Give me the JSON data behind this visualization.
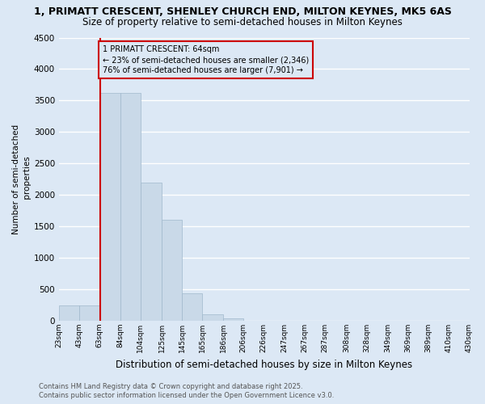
{
  "title": "1, PRIMATT CRESCENT, SHENLEY CHURCH END, MILTON KEYNES, MK5 6AS",
  "subtitle": "Size of property relative to semi-detached houses in Milton Keynes",
  "xlabel": "Distribution of semi-detached houses by size in Milton Keynes",
  "ylabel": "Number of semi-detached\n properties",
  "footer_line1": "Contains HM Land Registry data © Crown copyright and database right 2025.",
  "footer_line2": "Contains public sector information licensed under the Open Government Licence v3.0.",
  "annotation_title": "1 PRIMATT CRESCENT: 64sqm",
  "annotation_line1": "← 23% of semi-detached houses are smaller (2,346)",
  "annotation_line2": "76% of semi-detached houses are larger (7,901) →",
  "property_size_sqm": 64,
  "n_bins": 21,
  "bar_heights": [
    250,
    250,
    3620,
    3620,
    2200,
    1600,
    440,
    105,
    40,
    0,
    0,
    0,
    0,
    0,
    0,
    0,
    0,
    0,
    0,
    0
  ],
  "tick_labels": [
    "23sqm",
    "43sqm",
    "63sqm",
    "84sqm",
    "104sqm",
    "125sqm",
    "145sqm",
    "165sqm",
    "186sqm",
    "206sqm",
    "226sqm",
    "247sqm",
    "267sqm",
    "287sqm",
    "308sqm",
    "328sqm",
    "349sqm",
    "369sqm",
    "389sqm",
    "410sqm",
    "430sqm"
  ],
  "bin_starts": [
    23,
    43,
    63,
    84,
    104,
    125,
    145,
    165,
    186,
    206,
    226,
    247,
    267,
    287,
    308,
    328,
    349,
    369,
    389,
    410,
    430
  ],
  "ylim": [
    0,
    4500
  ],
  "bar_color": "#c9d9e8",
  "bar_edge_color": "#a0b8cc",
  "vline_color": "#cc0000",
  "bg_color": "#dce8f5",
  "grid_color": "#ffffff",
  "title_fontsize": 9,
  "subtitle_fontsize": 8.5,
  "ylabel_fontsize": 7.5,
  "xlabel_fontsize": 8.5,
  "tick_fontsize": 6.5,
  "ytick_fontsize": 7.5,
  "annotation_fontsize": 7,
  "footer_fontsize": 6
}
